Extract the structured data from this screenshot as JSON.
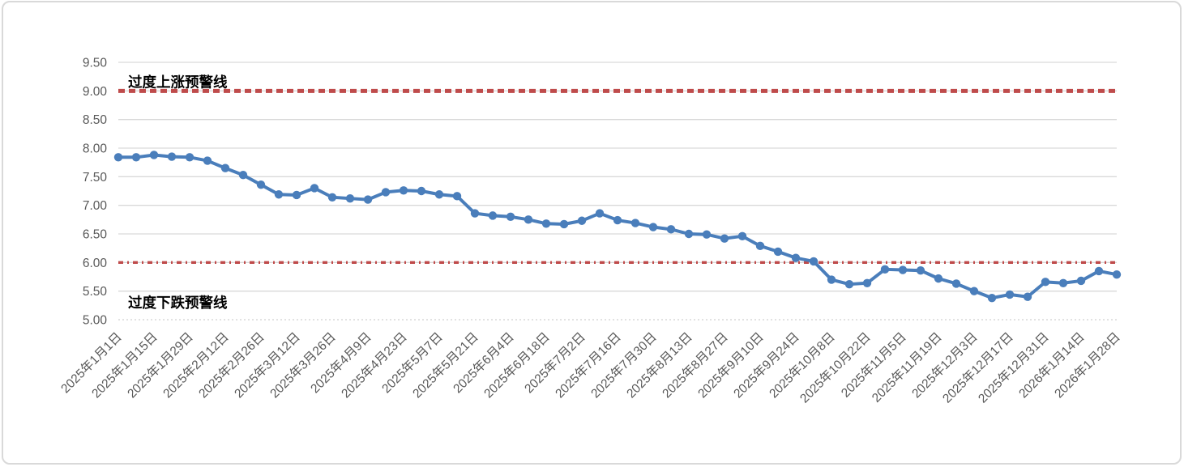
{
  "frame": {
    "background_color": "#ffffff",
    "border_color": "#d9d9d9"
  },
  "chart_data": {
    "type": "line",
    "title": "",
    "legend": "none",
    "grid": "horizontal",
    "gridline_color": "#d9d9d9",
    "plot": {
      "ylim": [
        5.0,
        9.5
      ],
      "ytick_step": 0.5
    },
    "y_axis": {
      "tick_labels": [
        "9.50",
        "9.00",
        "8.50",
        "8.00",
        "7.50",
        "7.00",
        "6.50",
        "6.00",
        "5.50",
        "5.00"
      ],
      "tick_values": [
        9.5,
        9.0,
        8.5,
        8.0,
        7.5,
        7.0,
        6.5,
        6.0,
        5.5,
        5.0
      ],
      "label_color": "#595959",
      "dotted_gridline_values": [
        5.0
      ]
    },
    "x_axis": {
      "label_color": "#595959",
      "label_rotation_deg": -45,
      "labels_every_n_points": 2,
      "tick_labels": [
        "2025年1月1日",
        "2025年1月15日",
        "2025年1月29日",
        "2025年2月12日",
        "2025年2月26日",
        "2025年3月12日",
        "2025年3月26日",
        "2025年4月9日",
        "2025年4月23日",
        "2025年5月7日",
        "2025年5月21日",
        "2025年6月4日",
        "2025年6月18日",
        "2025年7月2日",
        "2025年7月16日",
        "2025年7月30日",
        "2025年8月13日",
        "2025年8月27日",
        "2025年9月10日",
        "2025年9月24日",
        "2025年10月8日",
        "2025年10月22日",
        "2025年11月5日",
        "2025年11月19日",
        "2025年12月3日",
        "2025年12月17日",
        "2025年12月31日",
        "2026年1月14日",
        "2026年1月28日"
      ]
    },
    "series": [
      {
        "color": "#4a7ebb",
        "marker": "circle",
        "marker_color": "#4a7ebb",
        "line_width": 4,
        "values": [
          7.84,
          7.84,
          7.88,
          7.85,
          7.84,
          7.78,
          7.65,
          7.53,
          7.36,
          7.19,
          7.18,
          7.3,
          7.14,
          7.12,
          7.1,
          7.23,
          7.26,
          7.25,
          7.19,
          7.16,
          6.86,
          6.82,
          6.8,
          6.75,
          6.68,
          6.67,
          6.73,
          6.86,
          6.74,
          6.69,
          6.62,
          6.58,
          6.5,
          6.49,
          6.42,
          6.46,
          6.29,
          6.19,
          6.08,
          6.02,
          5.7,
          5.62,
          5.64,
          5.88,
          5.87,
          5.86,
          5.72,
          5.63,
          5.5,
          5.38,
          5.44,
          5.4,
          5.66,
          5.64,
          5.68,
          5.85,
          5.79
        ]
      }
    ],
    "reference_lines": [
      {
        "value": 9.0,
        "label": "过度上涨预警线",
        "color": "#bf4b4b",
        "style": "dashed"
      },
      {
        "value": 6.0,
        "label": "过度下跌预警线",
        "color": "#bf4b4b",
        "style": "dash-dot"
      }
    ],
    "annotation_color": "#000000"
  }
}
